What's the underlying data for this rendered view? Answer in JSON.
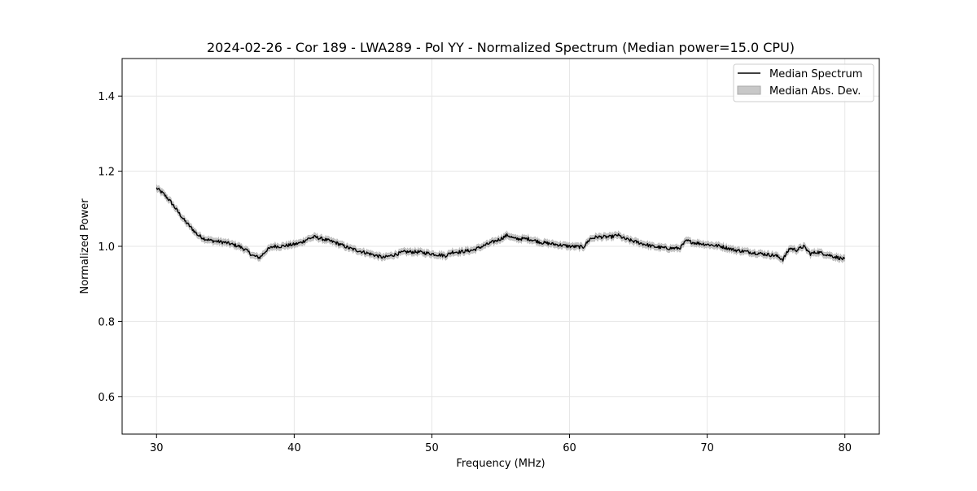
{
  "chart_data": {
    "type": "line",
    "title": "2024-02-26 - Cor 189 - LWA289 - Pol YY - Normalized Spectrum (Median power=15.0 CPU)",
    "xlabel": "Frequency (MHz)",
    "ylabel": "Normalized Power",
    "xlim": [
      27.5,
      82.5
    ],
    "ylim": [
      0.5,
      1.5
    ],
    "xticks": [
      30,
      40,
      50,
      60,
      70,
      80
    ],
    "yticks": [
      0.6,
      0.8,
      1.0,
      1.2,
      1.4
    ],
    "xtick_labels": [
      "30",
      "40",
      "50",
      "60",
      "70",
      "80"
    ],
    "ytick_labels": [
      "0.6",
      "0.8",
      "1.0",
      "1.2",
      "1.4"
    ],
    "grid": true,
    "legend": {
      "placement": "top-right",
      "entries": [
        "Median Spectrum",
        "Median Abs. Dev."
      ]
    },
    "series": [
      {
        "name": "Median Spectrum",
        "color": "#000000",
        "mad_band": 0.008,
        "x": [
          30,
          30.5,
          31,
          31.5,
          32,
          32.5,
          33,
          33.5,
          34,
          35,
          36,
          36.5,
          37,
          37.5,
          38,
          38.5,
          39,
          40,
          40.5,
          41,
          41.5,
          42,
          43,
          44,
          44.5,
          45,
          45.5,
          46,
          46.5,
          47,
          48,
          49,
          50,
          51,
          51.5,
          52,
          53,
          54,
          55,
          55.5,
          56,
          57,
          58,
          59,
          60,
          61,
          61.5,
          62,
          63,
          63.5,
          64,
          65,
          66,
          67,
          68,
          68.5,
          69,
          70,
          71,
          72,
          73,
          74,
          75,
          75.5,
          76,
          76.5,
          77,
          77.5,
          78,
          79,
          79.5,
          80
        ],
        "values": [
          1.155,
          1.14,
          1.12,
          1.095,
          1.07,
          1.05,
          1.03,
          1.02,
          1.015,
          1.01,
          1.0,
          0.99,
          0.975,
          0.97,
          0.99,
          1.0,
          1.0,
          1.005,
          1.01,
          1.02,
          1.025,
          1.02,
          1.01,
          0.995,
          0.99,
          0.985,
          0.98,
          0.975,
          0.97,
          0.975,
          0.985,
          0.985,
          0.98,
          0.975,
          0.985,
          0.985,
          0.99,
          1.005,
          1.02,
          1.03,
          1.02,
          1.02,
          1.01,
          1.005,
          1.0,
          0.998,
          1.02,
          1.025,
          1.025,
          1.03,
          1.02,
          1.01,
          1.0,
          0.995,
          0.995,
          1.015,
          1.01,
          1.005,
          1.0,
          0.99,
          0.985,
          0.98,
          0.975,
          0.965,
          0.995,
          0.99,
          1.0,
          0.98,
          0.985,
          0.975,
          0.97,
          0.965
        ]
      }
    ]
  }
}
